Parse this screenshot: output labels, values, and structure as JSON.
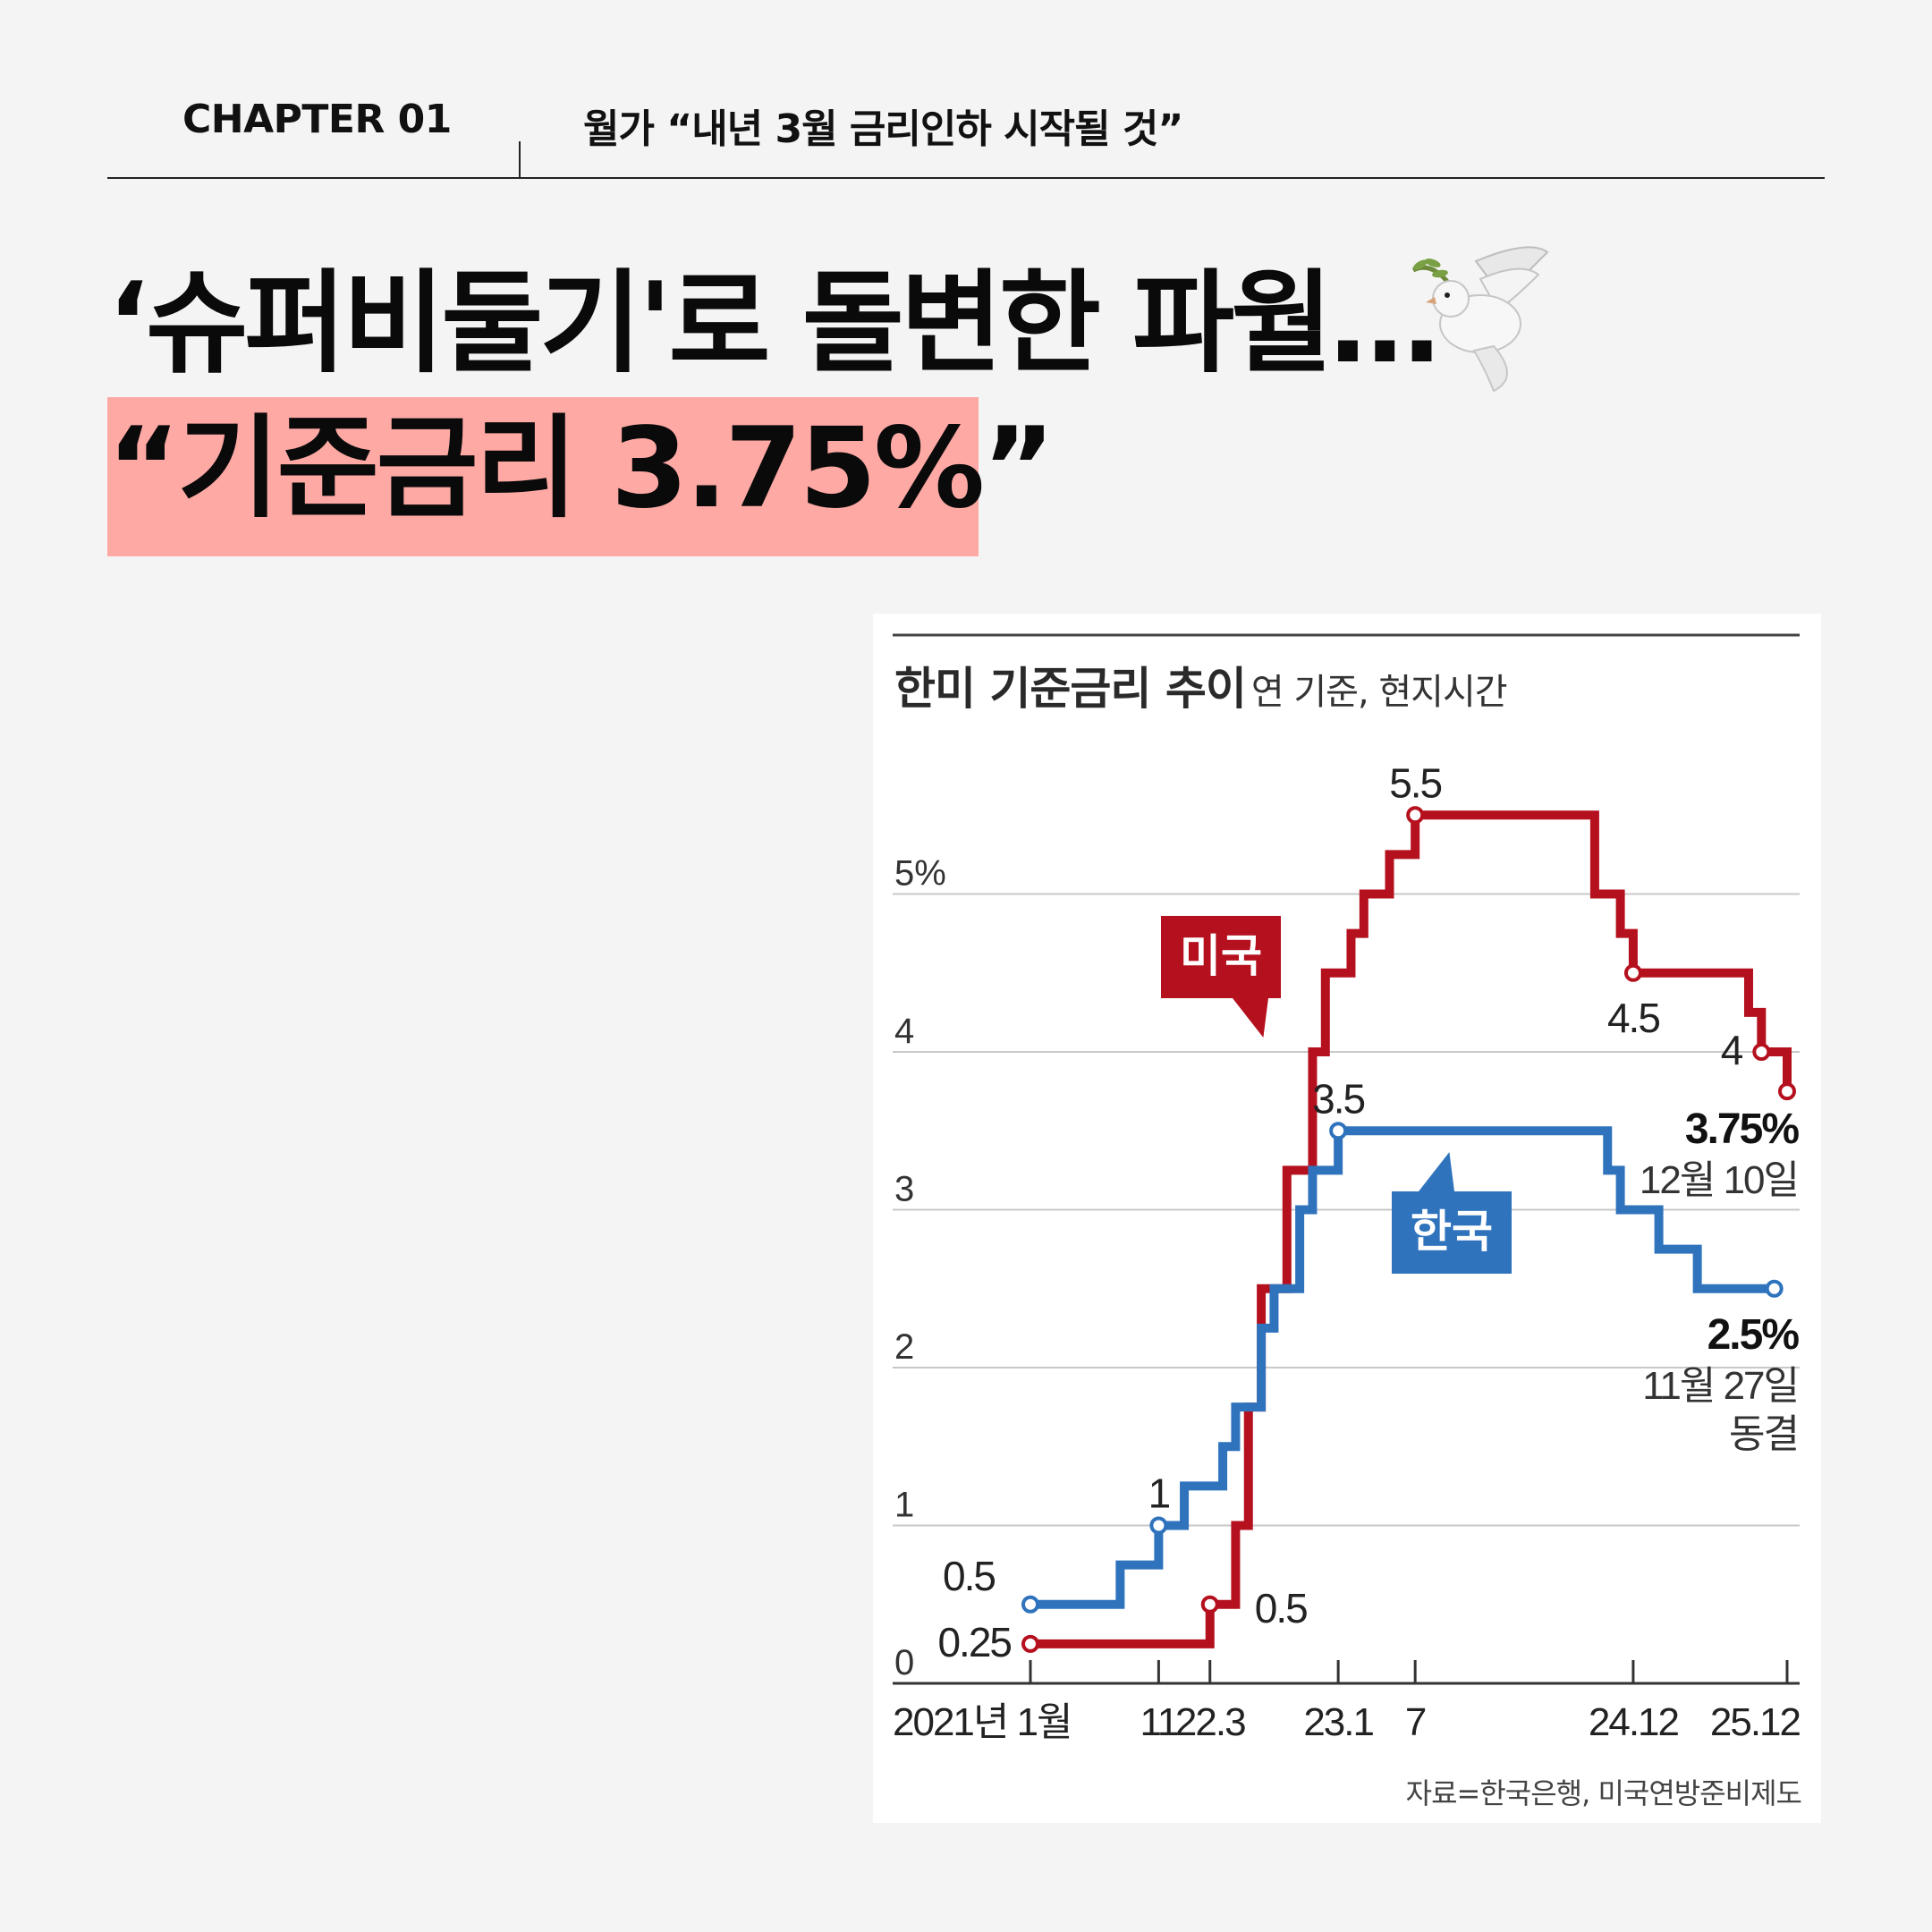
{
  "header": {
    "chapter": "CHAPTER 01",
    "subtitle": "월가 “내년 3월 금리인하 시작될 것”"
  },
  "headline": {
    "line1": "‘슈퍼비둘기'로 돌변한 파월…",
    "line2": "“기준금리 3.75%”",
    "icon": "dove-icon"
  },
  "colors": {
    "highlight": "#ffa9a5",
    "us": "#b5101e",
    "korea": "#2f73bd"
  },
  "chart_data": {
    "type": "line",
    "step": true,
    "title": "한미 기준금리 추이",
    "subtitle": "연 기준, 현지시간",
    "source": "자료=한국은행, 미국연방준비제도",
    "y_unit": "%",
    "ylim": [
      0,
      5.5
    ],
    "y_ticks": [
      {
        "value": 0,
        "label": "0"
      },
      {
        "value": 1,
        "label": "1"
      },
      {
        "value": 2,
        "label": "2"
      },
      {
        "value": 3,
        "label": "3"
      },
      {
        "value": 4,
        "label": "4"
      },
      {
        "value": 5,
        "label": "5%"
      }
    ],
    "x_ticks": [
      {
        "date": "2021-01",
        "label": "2021년 1월"
      },
      {
        "date": "2021-11",
        "label": "11"
      },
      {
        "date": "2022-03",
        "label": "22.3"
      },
      {
        "date": "2023-01",
        "label": "23.1"
      },
      {
        "date": "2023-07",
        "label": "7"
      },
      {
        "date": "2024-12",
        "label": "24.12"
      },
      {
        "date": "2025-12",
        "label": "25.12"
      }
    ],
    "xlim": [
      "2021-01",
      "2025-12"
    ],
    "grid": true,
    "series": [
      {
        "name": "미국",
        "color": "#b5101e",
        "points": [
          {
            "x": "2021-01",
            "y": 0.25
          },
          {
            "x": "2022-03",
            "y": 0.5
          },
          {
            "x": "2022-05",
            "y": 1.0
          },
          {
            "x": "2022-06",
            "y": 1.75
          },
          {
            "x": "2022-07",
            "y": 2.5
          },
          {
            "x": "2022-09",
            "y": 3.25
          },
          {
            "x": "2022-11",
            "y": 4.0
          },
          {
            "x": "2022-12",
            "y": 4.5
          },
          {
            "x": "2023-02",
            "y": 4.75
          },
          {
            "x": "2023-03",
            "y": 5.0
          },
          {
            "x": "2023-05",
            "y": 5.25
          },
          {
            "x": "2023-07",
            "y": 5.5
          },
          {
            "x": "2024-09",
            "y": 5.0
          },
          {
            "x": "2024-11",
            "y": 4.75
          },
          {
            "x": "2024-12",
            "y": 4.5
          },
          {
            "x": "2025-09",
            "y": 4.25
          },
          {
            "x": "2025-10",
            "y": 4.0
          },
          {
            "x": "2025-12",
            "y": 3.75
          }
        ]
      },
      {
        "name": "한국",
        "color": "#2f73bd",
        "points": [
          {
            "x": "2021-01",
            "y": 0.5
          },
          {
            "x": "2021-08",
            "y": 0.75
          },
          {
            "x": "2021-11",
            "y": 1.0
          },
          {
            "x": "2022-01",
            "y": 1.25
          },
          {
            "x": "2022-04",
            "y": 1.5
          },
          {
            "x": "2022-05",
            "y": 1.75
          },
          {
            "x": "2022-07",
            "y": 2.25
          },
          {
            "x": "2022-08",
            "y": 2.5
          },
          {
            "x": "2022-10",
            "y": 3.0
          },
          {
            "x": "2022-11",
            "y": 3.25
          },
          {
            "x": "2023-01",
            "y": 3.5
          },
          {
            "x": "2024-10",
            "y": 3.25
          },
          {
            "x": "2024-11",
            "y": 3.0
          },
          {
            "x": "2025-02",
            "y": 2.75
          },
          {
            "x": "2025-05",
            "y": 2.5
          },
          {
            "x": "2025-11",
            "y": 2.5
          }
        ]
      }
    ],
    "annotations": [
      {
        "series": "미국",
        "x": "2021-01",
        "y": 0.25,
        "label": "0.25",
        "side": "left"
      },
      {
        "series": "미국",
        "x": "2022-03",
        "y": 0.5,
        "label": "0.5",
        "side": "right"
      },
      {
        "series": "미국",
        "x": "2023-07",
        "y": 5.5,
        "label": "5.5",
        "side": "top"
      },
      {
        "series": "미국",
        "x": "2024-12",
        "y": 4.5,
        "label": "4.5",
        "side": "below"
      },
      {
        "series": "미국",
        "x": "2025-10",
        "y": 4.0,
        "label": "4",
        "side": "left"
      },
      {
        "series": "미국",
        "x": "2025-12",
        "y": 3.75,
        "label": "",
        "side": "none"
      },
      {
        "series": "한국",
        "x": "2021-01",
        "y": 0.5,
        "label": "0.5",
        "side": "above-left"
      },
      {
        "series": "한국",
        "x": "2021-11",
        "y": 1.0,
        "label": "1",
        "side": "top"
      },
      {
        "series": "한국",
        "x": "2023-01",
        "y": 3.5,
        "label": "3.5",
        "side": "top"
      },
      {
        "series": "한국",
        "x": "2025-11",
        "y": 2.5,
        "label": "",
        "side": "none"
      }
    ],
    "callouts": [
      {
        "series": "미국",
        "value": "3.75%",
        "date": "12월 10일"
      },
      {
        "series": "한국",
        "value": "2.5%",
        "date": "11월 27일",
        "note": "동결"
      }
    ]
  }
}
